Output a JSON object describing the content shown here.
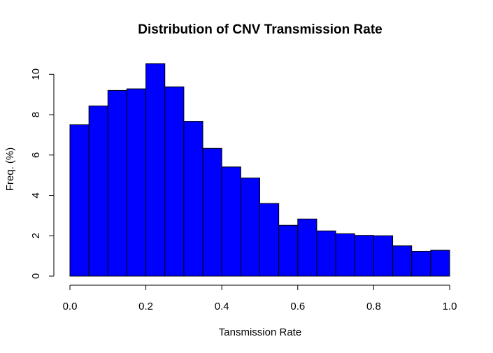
{
  "chart_data": {
    "type": "bar",
    "title": "Distribution of CNV Transmission Rate",
    "xlabel": "Tansmission Rate",
    "ylabel": "Freq. (%)",
    "bin_edges": [
      0.0,
      0.05,
      0.1,
      0.15,
      0.2,
      0.25,
      0.3,
      0.35,
      0.4,
      0.45,
      0.5,
      0.55,
      0.6,
      0.65,
      0.7,
      0.75,
      0.8,
      0.85,
      0.9,
      0.95,
      1.0
    ],
    "values": [
      7.5,
      8.43,
      9.2,
      9.28,
      10.53,
      9.38,
      7.67,
      6.33,
      5.41,
      4.86,
      3.6,
      2.52,
      2.83,
      2.24,
      2.1,
      2.02,
      2.0,
      1.5,
      1.23,
      1.28
    ],
    "xlim": [
      0.0,
      1.0
    ],
    "ylim": [
      0,
      10.53
    ],
    "x_ticks": [
      0.0,
      0.2,
      0.4,
      0.6,
      0.8,
      1.0
    ],
    "x_tick_labels": [
      "0.0",
      "0.2",
      "0.4",
      "0.6",
      "0.8",
      "1.0"
    ],
    "y_ticks": [
      0,
      2,
      4,
      6,
      8,
      10
    ],
    "y_tick_labels": [
      "0",
      "2",
      "4",
      "6",
      "8",
      "10"
    ],
    "bar_color": "#0000ff",
    "edge_color": "#000000",
    "grid": false,
    "legend": "none"
  }
}
